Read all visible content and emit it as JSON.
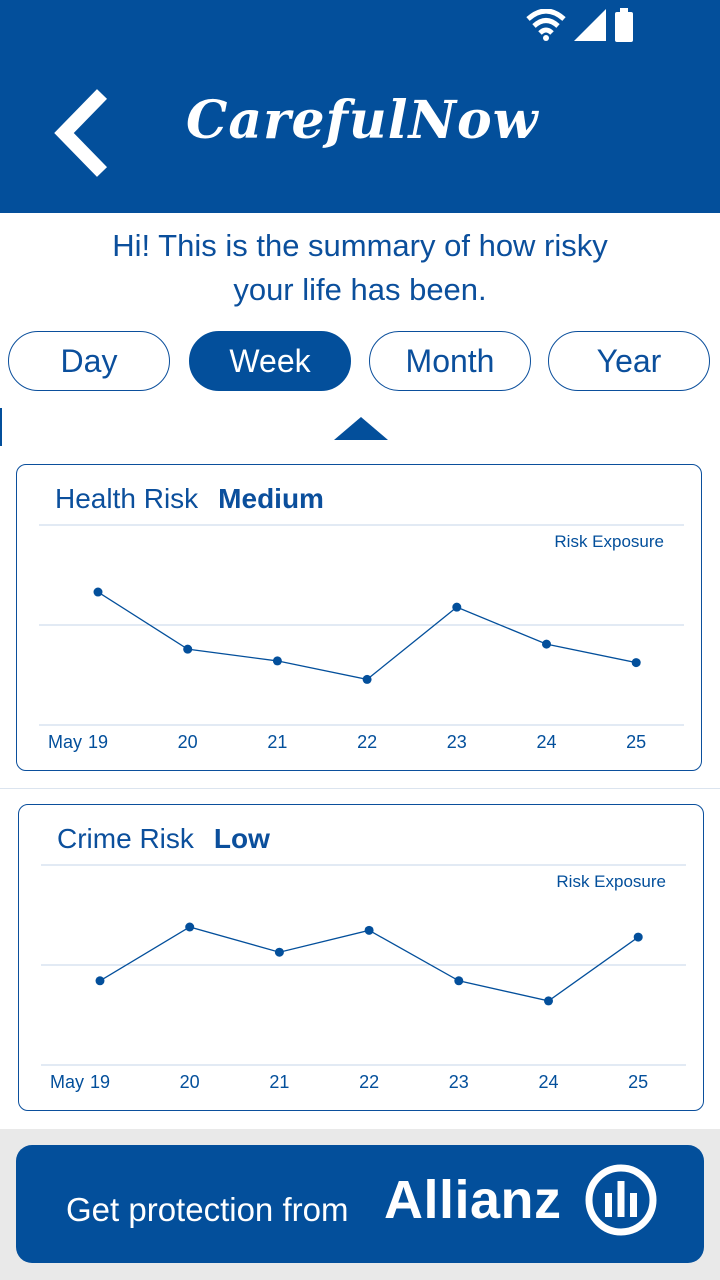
{
  "app": {
    "title": "CarefulNow"
  },
  "intro": {
    "line1": "Hi! This is the summary of how risky",
    "line2": "your life has been."
  },
  "tabs": [
    {
      "label": "Day",
      "active": false
    },
    {
      "label": "Week",
      "active": true
    },
    {
      "label": "Month",
      "active": false
    },
    {
      "label": "Year",
      "active": false
    }
  ],
  "cards": [
    {
      "title": "Health Risk",
      "level": "Medium"
    },
    {
      "title": "Crime Risk",
      "level": "Low"
    }
  ],
  "chart_data": [
    {
      "type": "line",
      "title": "Health Risk",
      "ylabel": "Risk Exposure",
      "x_prefix": "May",
      "categories": [
        "19",
        "20",
        "21",
        "22",
        "23",
        "24",
        "25"
      ],
      "values": [
        7.2,
        3.8,
        3.1,
        2.0,
        6.3,
        4.1,
        3.0
      ],
      "ylim": [
        0,
        10
      ],
      "grid": true,
      "color": "#034f9b"
    },
    {
      "type": "line",
      "title": "Crime Risk",
      "ylabel": "Risk Exposure",
      "x_prefix": "May",
      "categories": [
        "19",
        "20",
        "21",
        "22",
        "23",
        "24",
        "25"
      ],
      "values": [
        4.3,
        7.5,
        6.0,
        7.3,
        4.3,
        3.1,
        6.9
      ],
      "ylim": [
        0,
        10
      ],
      "grid": true,
      "color": "#034f9b"
    }
  ],
  "cta": {
    "text": "Get protection from",
    "brand": "Allianz"
  },
  "icons": {
    "back": "chevron-left-icon",
    "wifi": "wifi-icon",
    "signal": "signal-icon",
    "battery": "battery-icon",
    "logo": "allianz-logo-icon"
  },
  "colors": {
    "primary": "#034f9b",
    "text": "#0b4f9c",
    "footer": "#e9e9e9"
  }
}
